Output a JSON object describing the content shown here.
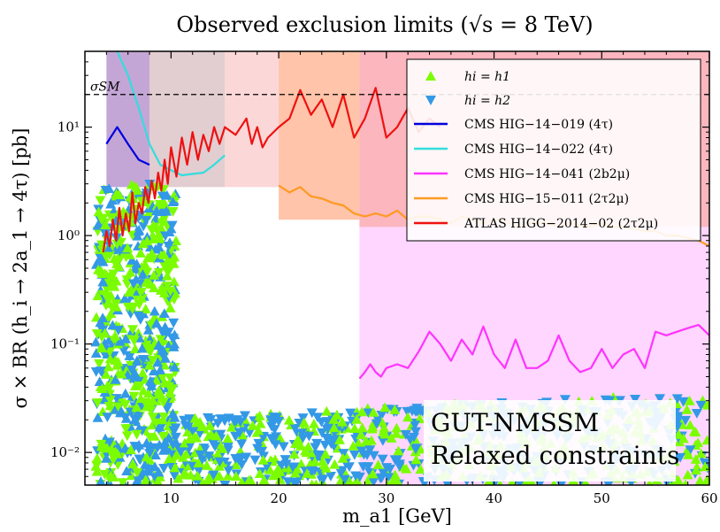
{
  "chart_data": {
    "type": "scatter",
    "title": "Observed exclusion limits (√s = 8 TeV)",
    "xlabel": "m_a1 [GeV]",
    "ylabel": "σ × BR (h_i → 2a_1 → 4τ) [pb]",
    "xlim": [
      2,
      60
    ],
    "ylim": [
      0.005,
      50
    ],
    "yscale": "log",
    "x_ticks": [
      10,
      20,
      30,
      40,
      50,
      60
    ],
    "y_ticks": [
      {
        "value": 0.01,
        "label": "10⁻²"
      },
      {
        "value": 0.1,
        "label": "10⁻¹"
      },
      {
        "value": 1,
        "label": "10⁰"
      },
      {
        "value": 10,
        "label": "10¹"
      }
    ],
    "sm_line": {
      "label": "σSM",
      "value": 20,
      "color": "#000000"
    },
    "annotation": [
      "GUT-NMSSM",
      "Relaxed constraints"
    ],
    "legend": {
      "placement": "top-right",
      "markers": [
        {
          "name": "hi = h1",
          "color": "#7cfc00",
          "marker": "triangle-up"
        },
        {
          "name": "hi = h2",
          "color": "#3399e6",
          "marker": "triangle-down"
        }
      ]
    },
    "limit_curves": [
      {
        "name": "CMS HIG−14−019 (4τ)",
        "color": "#0000dd",
        "x": [
          4.0,
          5.0,
          6.0,
          7.0,
          8.0
        ],
        "y": [
          7.0,
          10.0,
          7.0,
          5.0,
          4.5
        ]
      },
      {
        "name": "CMS HIG−14−022 (4τ)",
        "color": "#33dddd",
        "x": [
          5.0,
          6.0,
          7.0,
          8.0,
          9.0,
          10.0,
          11.0,
          12.0,
          13.0,
          14.0,
          15.0
        ],
        "y": [
          50.0,
          30.0,
          15.0,
          7.0,
          4.5,
          4.0,
          3.6,
          3.7,
          3.8,
          4.5,
          5.5
        ]
      },
      {
        "name": "CMS HIG−14−041 (2b2μ)",
        "color": "#ff33ff",
        "x": [
          27.5,
          28.0,
          28.5,
          29.0,
          29.5,
          30.0,
          31.0,
          32.0,
          33.0,
          34.0,
          35.0,
          36.0,
          37.0,
          38.0,
          39.0,
          40.0,
          41.0,
          42.0,
          43.0,
          44.0,
          45.0,
          46.0,
          47.0,
          48.0,
          49.0,
          50.0,
          51.0,
          52.0,
          53.0,
          54.0,
          55.0,
          56.0,
          57.0,
          58.0,
          59.0,
          60.0
        ],
        "y": [
          0.048,
          0.055,
          0.065,
          0.055,
          0.05,
          0.06,
          0.065,
          0.06,
          0.085,
          0.13,
          0.1,
          0.07,
          0.11,
          0.08,
          0.145,
          0.08,
          0.06,
          0.11,
          0.06,
          0.06,
          0.07,
          0.12,
          0.07,
          0.055,
          0.06,
          0.09,
          0.06,
          0.08,
          0.09,
          0.06,
          0.13,
          0.12,
          0.13,
          0.14,
          0.15,
          0.12
        ]
      },
      {
        "name": "CMS HIG−15−011 (2τ2μ)",
        "color": "#ff9922",
        "x": [
          20,
          21,
          22,
          23,
          24,
          25,
          26,
          27,
          28,
          29,
          30,
          31,
          32,
          33,
          34,
          35,
          36,
          37,
          38,
          39,
          40,
          41,
          42,
          43,
          44,
          45,
          46,
          47,
          48,
          49,
          50,
          51,
          52,
          53,
          54,
          55,
          56,
          57,
          58,
          59,
          60
        ],
        "y": [
          2.9,
          2.5,
          2.8,
          2.3,
          2.2,
          2.0,
          1.9,
          1.6,
          1.5,
          1.6,
          1.5,
          1.7,
          1.4,
          1.5,
          1.5,
          1.4,
          1.3,
          1.5,
          1.4,
          1.3,
          1.4,
          1.4,
          1.2,
          1.3,
          1.3,
          1.3,
          1.2,
          1.3,
          1.25,
          1.2,
          1.3,
          1.2,
          1.2,
          1.15,
          1.1,
          1.1,
          1.0,
          1.0,
          0.95,
          0.9,
          0.8
        ]
      },
      {
        "name": "ATLAS HIGG−2014−02 (2τ2μ)",
        "color": "#ee1111",
        "x": [
          3.7,
          4.0,
          4.3,
          4.6,
          4.9,
          5.2,
          5.5,
          5.8,
          6.1,
          6.4,
          6.7,
          7.0,
          7.3,
          7.6,
          7.9,
          8.2,
          8.5,
          8.8,
          9.1,
          9.4,
          9.7,
          10.0,
          10.5,
          11.0,
          11.5,
          12.0,
          12.5,
          13.0,
          13.5,
          14.0,
          14.5,
          15.0,
          16.0,
          17.0,
          17.5,
          18.0,
          18.5,
          19.0,
          20.0,
          21.0,
          22.0,
          23.0,
          24.0,
          25.0,
          26.0,
          27.0,
          28.0,
          29.0,
          30.0,
          31.0,
          32.0,
          33.0,
          34.0,
          35.0
        ],
        "y": [
          0.7,
          1.1,
          0.8,
          1.4,
          0.9,
          1.8,
          1.0,
          1.6,
          1.1,
          2.5,
          1.3,
          2.0,
          1.6,
          2.8,
          2.0,
          3.2,
          2.2,
          3.8,
          2.6,
          5.0,
          3.0,
          6.5,
          3.5,
          8.0,
          4.5,
          9.0,
          5.0,
          8.5,
          6.0,
          10.0,
          7.0,
          10.0,
          8.5,
          12.0,
          7.0,
          10.0,
          6.5,
          8.0,
          10.0,
          12.0,
          22.0,
          13.0,
          18.0,
          10.0,
          20.0,
          8.0,
          12.0,
          23.0,
          8.0,
          10.0,
          15.0,
          9.0,
          12.0,
          10.0
        ]
      }
    ],
    "shaded_regions": [
      {
        "x": [
          4,
          8
        ],
        "color": "#b088c8"
      },
      {
        "x": [
          8,
          15
        ],
        "color": "#d8bcc0"
      },
      {
        "x": [
          15,
          20
        ],
        "color": "#fbcaca"
      },
      {
        "x": [
          20,
          27.5
        ],
        "color": "#ffb08c"
      },
      {
        "x": [
          27.5,
          60
        ],
        "color": "#fa9ea8"
      },
      {
        "x": [
          27.5,
          60
        ],
        "y": [
          0.005,
          1.2
        ],
        "color": "#ffc8ff"
      }
    ]
  }
}
